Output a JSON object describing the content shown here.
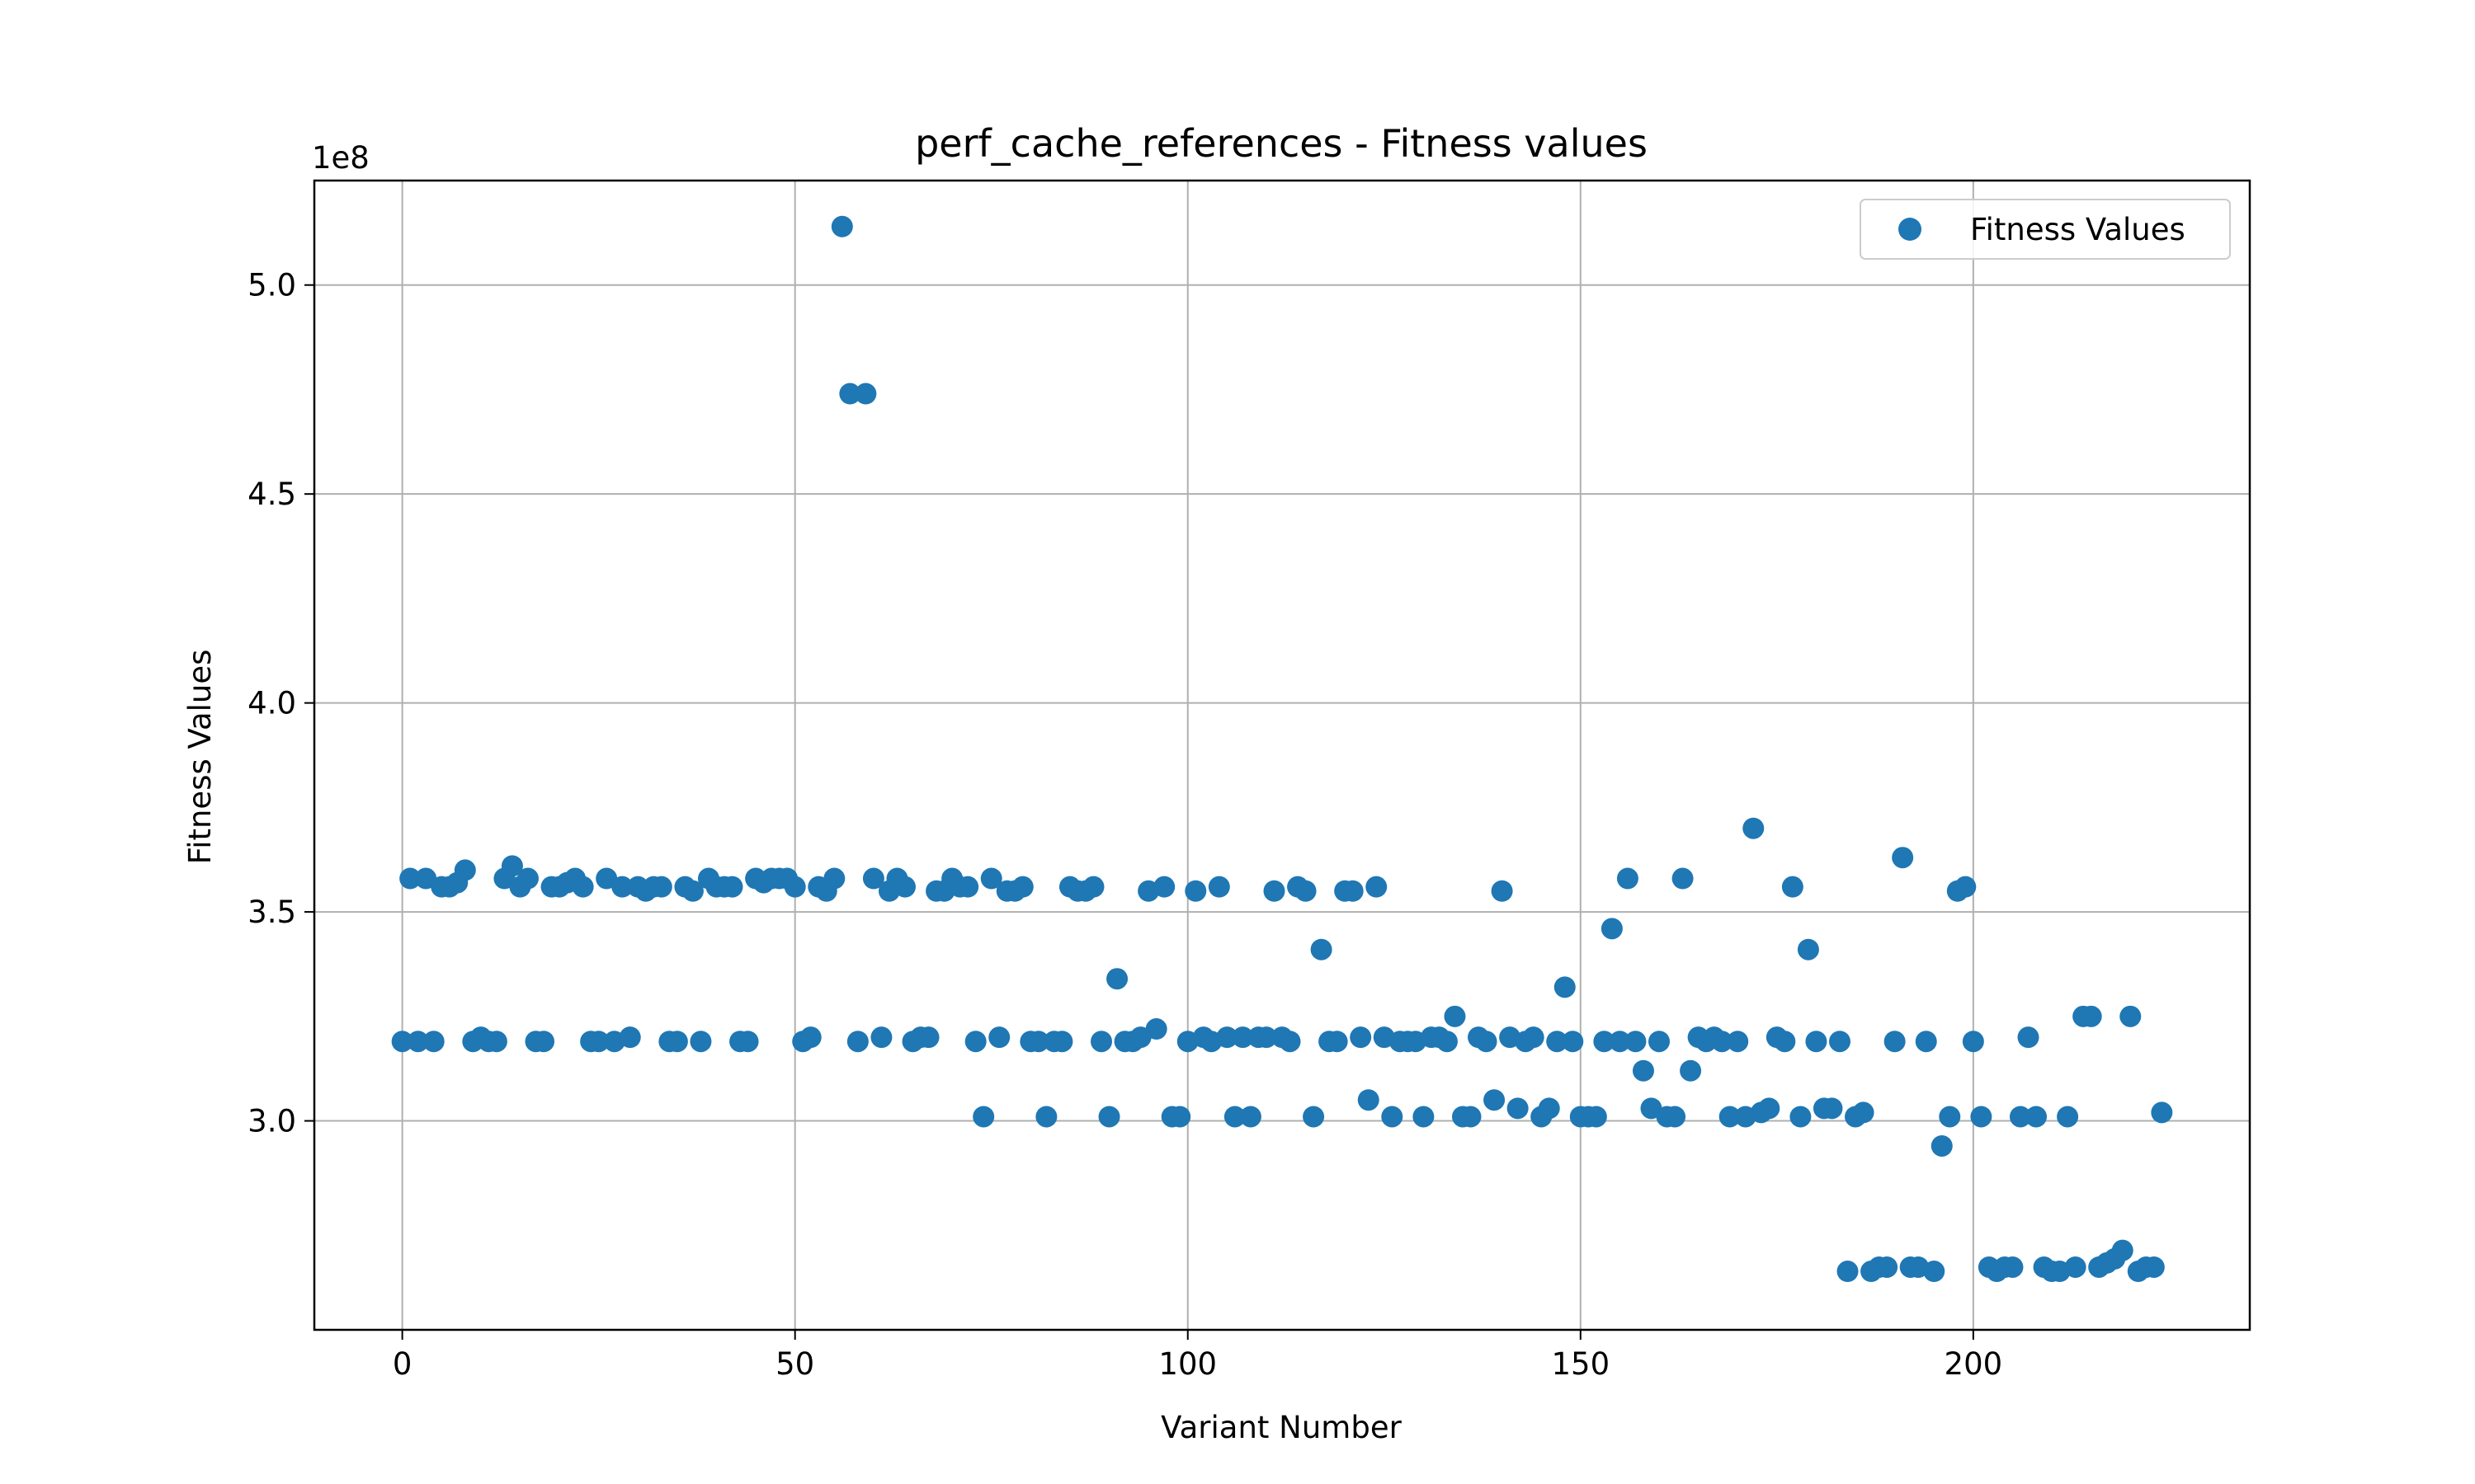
{
  "chart_data": {
    "type": "scatter",
    "title": "perf_cache_references - Fitness values",
    "xlabel": "Variant Number",
    "ylabel": "Fitness Values",
    "y_offset_label": "1e8",
    "xlim": [
      -11.2,
      235.2
    ],
    "ylim": [
      2.5,
      5.25
    ],
    "xticks": [
      0,
      50,
      100,
      150,
      200
    ],
    "yticks": [
      3.0,
      3.5,
      4.0,
      4.5,
      5.0
    ],
    "ytick_labels": [
      "3.0",
      "3.5",
      "4.0",
      "4.5",
      "5.0"
    ],
    "grid": true,
    "legend_position": "upper-right",
    "point_color": "#1f77b4",
    "series": [
      {
        "name": "Fitness Values",
        "points": [
          [
            0,
            3.19
          ],
          [
            1,
            3.58
          ],
          [
            2,
            3.19
          ],
          [
            3,
            3.58
          ],
          [
            4,
            3.19
          ],
          [
            5,
            3.56
          ],
          [
            6,
            3.56
          ],
          [
            7,
            3.57
          ],
          [
            8,
            3.6
          ],
          [
            9,
            3.19
          ],
          [
            10,
            3.2
          ],
          [
            11,
            3.19
          ],
          [
            12,
            3.19
          ],
          [
            13,
            3.58
          ],
          [
            14,
            3.61
          ],
          [
            15,
            3.56
          ],
          [
            16,
            3.58
          ],
          [
            17,
            3.19
          ],
          [
            18,
            3.19
          ],
          [
            19,
            3.56
          ],
          [
            20,
            3.56
          ],
          [
            21,
            3.57
          ],
          [
            22,
            3.58
          ],
          [
            23,
            3.56
          ],
          [
            24,
            3.19
          ],
          [
            25,
            3.19
          ],
          [
            26,
            3.58
          ],
          [
            27,
            3.19
          ],
          [
            28,
            3.56
          ],
          [
            29,
            3.2
          ],
          [
            30,
            3.56
          ],
          [
            31,
            3.55
          ],
          [
            32,
            3.56
          ],
          [
            33,
            3.56
          ],
          [
            34,
            3.19
          ],
          [
            35,
            3.19
          ],
          [
            36,
            3.56
          ],
          [
            37,
            3.55
          ],
          [
            38,
            3.19
          ],
          [
            39,
            3.58
          ],
          [
            40,
            3.56
          ],
          [
            41,
            3.56
          ],
          [
            42,
            3.56
          ],
          [
            43,
            3.19
          ],
          [
            44,
            3.19
          ],
          [
            45,
            3.58
          ],
          [
            46,
            3.57
          ],
          [
            47,
            3.58
          ],
          [
            48,
            3.58
          ],
          [
            49,
            3.58
          ],
          [
            50,
            3.56
          ],
          [
            51,
            3.19
          ],
          [
            52,
            3.2
          ],
          [
            53,
            3.56
          ],
          [
            54,
            3.55
          ],
          [
            55,
            3.58
          ],
          [
            56,
            5.14
          ],
          [
            57,
            4.74
          ],
          [
            58,
            3.19
          ],
          [
            59,
            4.74
          ],
          [
            60,
            3.58
          ],
          [
            61,
            3.2
          ],
          [
            62,
            3.55
          ],
          [
            63,
            3.58
          ],
          [
            64,
            3.56
          ],
          [
            65,
            3.19
          ],
          [
            66,
            3.2
          ],
          [
            67,
            3.2
          ],
          [
            68,
            3.55
          ],
          [
            69,
            3.55
          ],
          [
            70,
            3.58
          ],
          [
            71,
            3.56
          ],
          [
            72,
            3.56
          ],
          [
            73,
            3.19
          ],
          [
            74,
            3.01
          ],
          [
            75,
            3.58
          ],
          [
            76,
            3.2
          ],
          [
            77,
            3.55
          ],
          [
            78,
            3.55
          ],
          [
            79,
            3.56
          ],
          [
            80,
            3.19
          ],
          [
            81,
            3.19
          ],
          [
            82,
            3.01
          ],
          [
            83,
            3.19
          ],
          [
            84,
            3.19
          ],
          [
            85,
            3.56
          ],
          [
            86,
            3.55
          ],
          [
            87,
            3.55
          ],
          [
            88,
            3.56
          ],
          [
            89,
            3.19
          ],
          [
            90,
            3.01
          ],
          [
            91,
            3.34
          ],
          [
            92,
            3.19
          ],
          [
            93,
            3.19
          ],
          [
            94,
            3.2
          ],
          [
            95,
            3.55
          ],
          [
            96,
            3.22
          ],
          [
            97,
            3.56
          ],
          [
            98,
            3.01
          ],
          [
            99,
            3.01
          ],
          [
            100,
            3.19
          ],
          [
            101,
            3.55
          ],
          [
            102,
            3.2
          ],
          [
            103,
            3.19
          ],
          [
            104,
            3.56
          ],
          [
            105,
            3.2
          ],
          [
            106,
            3.01
          ],
          [
            107,
            3.2
          ],
          [
            108,
            3.01
          ],
          [
            109,
            3.2
          ],
          [
            110,
            3.2
          ],
          [
            111,
            3.55
          ],
          [
            112,
            3.2
          ],
          [
            113,
            3.19
          ],
          [
            114,
            3.56
          ],
          [
            115,
            3.55
          ],
          [
            116,
            3.01
          ],
          [
            117,
            3.41
          ],
          [
            118,
            3.19
          ],
          [
            119,
            3.19
          ],
          [
            120,
            3.55
          ],
          [
            121,
            3.55
          ],
          [
            122,
            3.2
          ],
          [
            123,
            3.05
          ],
          [
            124,
            3.56
          ],
          [
            125,
            3.2
          ],
          [
            126,
            3.01
          ],
          [
            127,
            3.19
          ],
          [
            128,
            3.19
          ],
          [
            129,
            3.19
          ],
          [
            130,
            3.01
          ],
          [
            131,
            3.2
          ],
          [
            132,
            3.2
          ],
          [
            133,
            3.19
          ],
          [
            134,
            3.25
          ],
          [
            135,
            3.01
          ],
          [
            136,
            3.01
          ],
          [
            137,
            3.2
          ],
          [
            138,
            3.19
          ],
          [
            139,
            3.05
          ],
          [
            140,
            3.55
          ],
          [
            141,
            3.2
          ],
          [
            142,
            3.03
          ],
          [
            143,
            3.19
          ],
          [
            144,
            3.2
          ],
          [
            145,
            3.01
          ],
          [
            146,
            3.03
          ],
          [
            147,
            3.19
          ],
          [
            148,
            3.32
          ],
          [
            149,
            3.19
          ],
          [
            150,
            3.01
          ],
          [
            151,
            3.01
          ],
          [
            152,
            3.01
          ],
          [
            153,
            3.19
          ],
          [
            154,
            3.46
          ],
          [
            155,
            3.19
          ],
          [
            156,
            3.58
          ],
          [
            157,
            3.19
          ],
          [
            158,
            3.12
          ],
          [
            159,
            3.03
          ],
          [
            160,
            3.19
          ],
          [
            161,
            3.01
          ],
          [
            162,
            3.01
          ],
          [
            163,
            3.58
          ],
          [
            164,
            3.12
          ],
          [
            165,
            3.2
          ],
          [
            166,
            3.19
          ],
          [
            167,
            3.2
          ],
          [
            168,
            3.19
          ],
          [
            169,
            3.01
          ],
          [
            170,
            3.19
          ],
          [
            171,
            3.01
          ],
          [
            172,
            3.7
          ],
          [
            173,
            3.02
          ],
          [
            174,
            3.03
          ],
          [
            175,
            3.2
          ],
          [
            176,
            3.19
          ],
          [
            177,
            3.56
          ],
          [
            178,
            3.01
          ],
          [
            179,
            3.41
          ],
          [
            180,
            3.19
          ],
          [
            181,
            3.03
          ],
          [
            182,
            3.03
          ],
          [
            183,
            3.19
          ],
          [
            184,
            2.64
          ],
          [
            185,
            3.01
          ],
          [
            186,
            3.02
          ],
          [
            187,
            2.64
          ],
          [
            188,
            2.65
          ],
          [
            189,
            2.65
          ],
          [
            190,
            3.19
          ],
          [
            191,
            3.63
          ],
          [
            192,
            2.65
          ],
          [
            193,
            2.65
          ],
          [
            194,
            3.19
          ],
          [
            195,
            2.64
          ],
          [
            196,
            2.94
          ],
          [
            197,
            3.01
          ],
          [
            198,
            3.55
          ],
          [
            199,
            3.56
          ],
          [
            200,
            3.19
          ],
          [
            201,
            3.01
          ],
          [
            202,
            2.65
          ],
          [
            203,
            2.64
          ],
          [
            204,
            2.65
          ],
          [
            205,
            2.65
          ],
          [
            206,
            3.01
          ],
          [
            207,
            3.2
          ],
          [
            208,
            3.01
          ],
          [
            209,
            2.65
          ],
          [
            210,
            2.64
          ],
          [
            211,
            2.64
          ],
          [
            212,
            3.01
          ],
          [
            213,
            2.65
          ],
          [
            214,
            3.25
          ],
          [
            215,
            3.25
          ],
          [
            216,
            2.65
          ],
          [
            217,
            2.66
          ],
          [
            218,
            2.67
          ],
          [
            219,
            2.69
          ],
          [
            220,
            3.25
          ],
          [
            221,
            2.64
          ],
          [
            222,
            2.65
          ],
          [
            223,
            2.65
          ],
          [
            224,
            3.02
          ]
        ]
      }
    ]
  }
}
